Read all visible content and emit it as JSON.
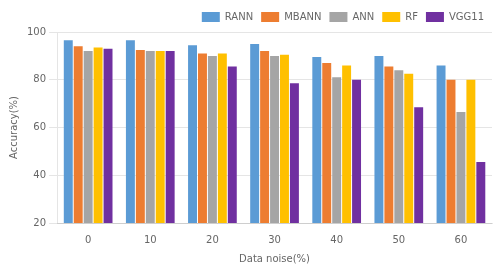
{
  "chart_data": {
    "type": "bar",
    "categories": [
      "0",
      "10",
      "20",
      "30",
      "40",
      "50",
      "60"
    ],
    "series": [
      {
        "name": "RANN",
        "color": "#5B9BD5",
        "values": [
          96.5,
          96.5,
          94.5,
          95.0,
          89.5,
          90.0,
          86.0
        ]
      },
      {
        "name": "MBANN",
        "color": "#ED7D31",
        "values": [
          94.0,
          92.5,
          91.0,
          92.0,
          87.0,
          85.5,
          80.0
        ]
      },
      {
        "name": "ANN",
        "color": "#A5A5A5",
        "values": [
          92.0,
          92.0,
          90.0,
          90.0,
          81.0,
          84.0,
          66.5
        ]
      },
      {
        "name": "RF",
        "color": "#FFC000",
        "values": [
          93.5,
          92.0,
          91.0,
          90.5,
          86.0,
          82.5,
          80.0
        ]
      },
      {
        "name": "VGG11",
        "color": "#7030A0",
        "values": [
          93.0,
          92.0,
          85.5,
          78.5,
          80.0,
          68.5,
          45.5
        ]
      }
    ],
    "xlabel": "Data noise(%)",
    "ylabel": "Accuracy(%)",
    "ylim": [
      20,
      100
    ],
    "yticks": [
      20,
      40,
      60,
      80,
      100
    ],
    "grid": true,
    "legend": "upper right"
  }
}
